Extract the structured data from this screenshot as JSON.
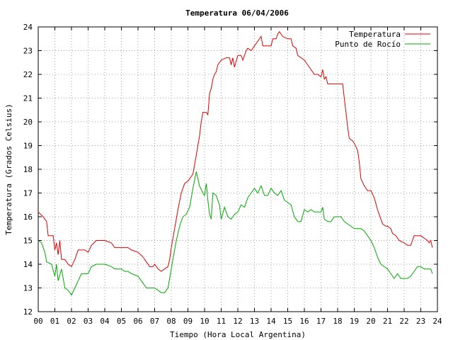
{
  "chart_data": {
    "type": "line",
    "title": "Temperatura 06/04/2006",
    "xlabel": "Tiempo (Hora Local Argentina)",
    "ylabel": "Temperatura (Grados Celsius)",
    "xlim": [
      0,
      24
    ],
    "ylim": [
      12,
      24
    ],
    "xticks": [
      "00",
      "01",
      "02",
      "03",
      "04",
      "05",
      "06",
      "07",
      "08",
      "09",
      "10",
      "11",
      "12",
      "13",
      "14",
      "15",
      "16",
      "17",
      "18",
      "19",
      "20",
      "21",
      "22",
      "23",
      "24"
    ],
    "yticks": [
      12,
      13,
      14,
      15,
      16,
      17,
      18,
      19,
      20,
      21,
      22,
      23,
      24
    ],
    "grid": true,
    "legend_position": "top-right",
    "series": [
      {
        "name": "Temperatura",
        "color": "#dd0000",
        "points": [
          [
            0.0,
            16.2
          ],
          [
            0.3,
            16.0
          ],
          [
            0.5,
            15.8
          ],
          [
            0.6,
            15.2
          ],
          [
            0.9,
            15.2
          ],
          [
            1.0,
            14.6
          ],
          [
            1.1,
            14.9
          ],
          [
            1.2,
            14.4
          ],
          [
            1.3,
            15.0
          ],
          [
            1.4,
            14.2
          ],
          [
            1.6,
            14.2
          ],
          [
            1.8,
            14.0
          ],
          [
            2.0,
            13.9
          ],
          [
            2.2,
            14.2
          ],
          [
            2.4,
            14.6
          ],
          [
            2.6,
            14.6
          ],
          [
            2.8,
            14.6
          ],
          [
            3.0,
            14.5
          ],
          [
            3.2,
            14.8
          ],
          [
            3.5,
            15.0
          ],
          [
            4.0,
            15.0
          ],
          [
            4.4,
            14.9
          ],
          [
            4.6,
            14.7
          ],
          [
            5.0,
            14.7
          ],
          [
            5.4,
            14.7
          ],
          [
            5.6,
            14.6
          ],
          [
            6.0,
            14.5
          ],
          [
            6.3,
            14.3
          ],
          [
            6.5,
            14.1
          ],
          [
            6.7,
            13.9
          ],
          [
            6.9,
            13.9
          ],
          [
            7.0,
            14.0
          ],
          [
            7.2,
            13.8
          ],
          [
            7.4,
            13.7
          ],
          [
            7.6,
            13.8
          ],
          [
            7.8,
            13.9
          ],
          [
            7.9,
            14.2
          ],
          [
            8.0,
            14.7
          ],
          [
            8.2,
            15.5
          ],
          [
            8.4,
            16.3
          ],
          [
            8.6,
            17.0
          ],
          [
            8.8,
            17.4
          ],
          [
            9.0,
            17.5
          ],
          [
            9.3,
            17.8
          ],
          [
            9.5,
            18.6
          ],
          [
            9.7,
            19.4
          ],
          [
            9.8,
            20.0
          ],
          [
            9.9,
            20.4
          ],
          [
            10.1,
            20.4
          ],
          [
            10.2,
            20.3
          ],
          [
            10.3,
            21.2
          ],
          [
            10.4,
            21.4
          ],
          [
            10.5,
            21.8
          ],
          [
            10.6,
            22.0
          ],
          [
            10.7,
            22.1
          ],
          [
            10.8,
            22.4
          ],
          [
            11.0,
            22.6
          ],
          [
            11.3,
            22.7
          ],
          [
            11.5,
            22.7
          ],
          [
            11.6,
            22.4
          ],
          [
            11.7,
            22.7
          ],
          [
            11.8,
            22.3
          ],
          [
            12.0,
            22.8
          ],
          [
            12.2,
            22.8
          ],
          [
            12.3,
            22.6
          ],
          [
            12.5,
            23.0
          ],
          [
            12.6,
            23.1
          ],
          [
            12.8,
            23.0
          ],
          [
            13.0,
            23.2
          ],
          [
            13.2,
            23.4
          ],
          [
            13.4,
            23.6
          ],
          [
            13.5,
            23.2
          ],
          [
            13.7,
            23.2
          ],
          [
            14.0,
            23.2
          ],
          [
            14.1,
            23.5
          ],
          [
            14.3,
            23.5
          ],
          [
            14.4,
            23.7
          ],
          [
            14.5,
            23.8
          ],
          [
            14.7,
            23.6
          ],
          [
            15.0,
            23.5
          ],
          [
            15.2,
            23.5
          ],
          [
            15.3,
            23.2
          ],
          [
            15.5,
            23.1
          ],
          [
            15.6,
            22.8
          ],
          [
            15.8,
            22.7
          ],
          [
            16.0,
            22.6
          ],
          [
            16.2,
            22.4
          ],
          [
            16.4,
            22.2
          ],
          [
            16.6,
            22.0
          ],
          [
            16.8,
            22.0
          ],
          [
            17.0,
            21.9
          ],
          [
            17.1,
            22.2
          ],
          [
            17.2,
            21.8
          ],
          [
            17.3,
            21.9
          ],
          [
            17.4,
            21.6
          ],
          [
            17.6,
            21.6
          ],
          [
            18.0,
            21.6
          ],
          [
            18.3,
            21.6
          ],
          [
            18.4,
            21.0
          ],
          [
            18.5,
            20.4
          ],
          [
            18.6,
            19.8
          ],
          [
            18.7,
            19.3
          ],
          [
            18.9,
            19.2
          ],
          [
            19.0,
            19.1
          ],
          [
            19.2,
            18.8
          ],
          [
            19.3,
            18.3
          ],
          [
            19.4,
            17.6
          ],
          [
            19.6,
            17.3
          ],
          [
            19.8,
            17.1
          ],
          [
            20.0,
            17.1
          ],
          [
            20.2,
            16.8
          ],
          [
            20.4,
            16.3
          ],
          [
            20.6,
            15.9
          ],
          [
            20.7,
            15.7
          ],
          [
            20.9,
            15.6
          ],
          [
            21.0,
            15.6
          ],
          [
            21.2,
            15.5
          ],
          [
            21.3,
            15.3
          ],
          [
            21.5,
            15.2
          ],
          [
            21.7,
            15.0
          ],
          [
            22.0,
            14.9
          ],
          [
            22.2,
            14.8
          ],
          [
            22.4,
            14.8
          ],
          [
            22.6,
            15.2
          ],
          [
            22.8,
            15.2
          ],
          [
            23.0,
            15.2
          ],
          [
            23.2,
            15.1
          ],
          [
            23.4,
            15.0
          ],
          [
            23.5,
            14.9
          ],
          [
            23.6,
            15.0
          ],
          [
            23.7,
            14.7
          ]
        ]
      },
      {
        "name": "Punto de Rocío",
        "color": "#00aa00",
        "points": [
          [
            0.0,
            15.0
          ],
          [
            0.2,
            14.9
          ],
          [
            0.4,
            14.5
          ],
          [
            0.5,
            14.1
          ],
          [
            0.8,
            14.0
          ],
          [
            1.0,
            13.5
          ],
          [
            1.1,
            14.0
          ],
          [
            1.2,
            13.3
          ],
          [
            1.4,
            13.8
          ],
          [
            1.6,
            13.0
          ],
          [
            1.8,
            12.9
          ],
          [
            2.0,
            12.7
          ],
          [
            2.2,
            13.0
          ],
          [
            2.4,
            13.3
          ],
          [
            2.6,
            13.6
          ],
          [
            2.8,
            13.6
          ],
          [
            3.0,
            13.6
          ],
          [
            3.2,
            13.9
          ],
          [
            3.5,
            14.0
          ],
          [
            4.0,
            14.0
          ],
          [
            4.4,
            13.9
          ],
          [
            4.6,
            13.8
          ],
          [
            5.0,
            13.8
          ],
          [
            5.2,
            13.7
          ],
          [
            5.4,
            13.7
          ],
          [
            5.6,
            13.6
          ],
          [
            6.0,
            13.5
          ],
          [
            6.2,
            13.3
          ],
          [
            6.5,
            13.0
          ],
          [
            6.8,
            13.0
          ],
          [
            7.0,
            13.0
          ],
          [
            7.2,
            12.9
          ],
          [
            7.4,
            12.8
          ],
          [
            7.6,
            12.8
          ],
          [
            7.8,
            13.0
          ],
          [
            7.9,
            13.4
          ],
          [
            8.1,
            14.2
          ],
          [
            8.3,
            15.0
          ],
          [
            8.5,
            15.6
          ],
          [
            8.7,
            16.0
          ],
          [
            8.9,
            16.1
          ],
          [
            9.1,
            16.4
          ],
          [
            9.3,
            17.2
          ],
          [
            9.5,
            17.9
          ],
          [
            9.6,
            17.6
          ],
          [
            9.7,
            17.3
          ],
          [
            9.9,
            17.0
          ],
          [
            10.0,
            16.9
          ],
          [
            10.1,
            17.4
          ],
          [
            10.2,
            16.7
          ],
          [
            10.3,
            16.1
          ],
          [
            10.4,
            15.9
          ],
          [
            10.5,
            17.0
          ],
          [
            10.7,
            16.9
          ],
          [
            10.9,
            16.5
          ],
          [
            11.0,
            15.9
          ],
          [
            11.2,
            16.4
          ],
          [
            11.4,
            16.0
          ],
          [
            11.6,
            15.9
          ],
          [
            11.8,
            16.1
          ],
          [
            12.0,
            16.2
          ],
          [
            12.2,
            16.5
          ],
          [
            12.4,
            16.4
          ],
          [
            12.6,
            16.8
          ],
          [
            12.8,
            17.0
          ],
          [
            13.0,
            17.2
          ],
          [
            13.2,
            17.0
          ],
          [
            13.4,
            17.3
          ],
          [
            13.6,
            16.9
          ],
          [
            13.8,
            16.9
          ],
          [
            14.0,
            17.2
          ],
          [
            14.2,
            17.0
          ],
          [
            14.4,
            16.9
          ],
          [
            14.6,
            17.1
          ],
          [
            14.8,
            16.7
          ],
          [
            15.0,
            16.6
          ],
          [
            15.2,
            16.5
          ],
          [
            15.4,
            16.0
          ],
          [
            15.6,
            15.8
          ],
          [
            15.8,
            15.8
          ],
          [
            16.0,
            16.3
          ],
          [
            16.2,
            16.2
          ],
          [
            16.4,
            16.3
          ],
          [
            16.6,
            16.2
          ],
          [
            16.8,
            16.2
          ],
          [
            17.0,
            16.2
          ],
          [
            17.1,
            16.4
          ],
          [
            17.2,
            15.9
          ],
          [
            17.4,
            15.8
          ],
          [
            17.6,
            15.8
          ],
          [
            17.8,
            16.0
          ],
          [
            18.0,
            16.0
          ],
          [
            18.2,
            16.0
          ],
          [
            18.4,
            15.8
          ],
          [
            18.6,
            15.7
          ],
          [
            18.8,
            15.6
          ],
          [
            19.0,
            15.5
          ],
          [
            19.2,
            15.5
          ],
          [
            19.4,
            15.5
          ],
          [
            19.6,
            15.4
          ],
          [
            19.8,
            15.2
          ],
          [
            20.0,
            15.0
          ],
          [
            20.2,
            14.7
          ],
          [
            20.4,
            14.3
          ],
          [
            20.6,
            14.0
          ],
          [
            20.8,
            13.9
          ],
          [
            21.0,
            13.8
          ],
          [
            21.2,
            13.6
          ],
          [
            21.4,
            13.4
          ],
          [
            21.6,
            13.6
          ],
          [
            21.8,
            13.4
          ],
          [
            22.0,
            13.4
          ],
          [
            22.2,
            13.4
          ],
          [
            22.4,
            13.5
          ],
          [
            22.6,
            13.7
          ],
          [
            22.8,
            13.9
          ],
          [
            23.0,
            13.9
          ],
          [
            23.2,
            13.8
          ],
          [
            23.4,
            13.8
          ],
          [
            23.5,
            13.8
          ],
          [
            23.6,
            13.8
          ],
          [
            23.7,
            13.6
          ]
        ]
      }
    ]
  }
}
